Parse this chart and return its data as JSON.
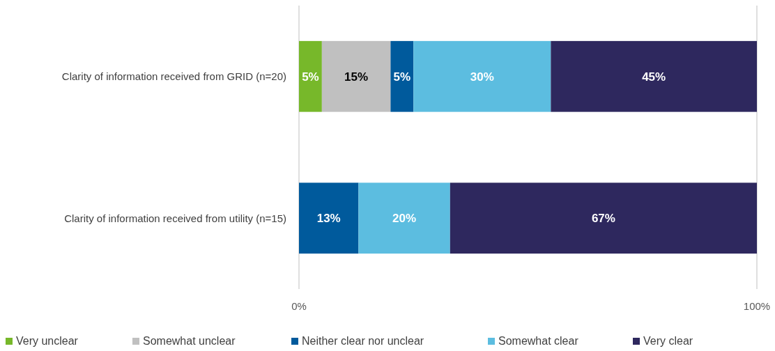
{
  "chart_data": {
    "type": "bar",
    "orientation": "horizontal",
    "stacked": true,
    "categories": [
      "Clarity of information received from GRID (n=20)",
      "Clarity of information received from utility (n=15)"
    ],
    "series": [
      {
        "name": "Very unclear",
        "color": "#77b82a",
        "values": [
          5,
          null
        ],
        "value_labels": [
          "5%",
          null
        ]
      },
      {
        "name": "Somewhat unclear",
        "color": "#c0c0c0",
        "values": [
          15,
          null
        ],
        "value_labels": [
          "15%",
          null
        ]
      },
      {
        "name": "Neither clear nor unclear",
        "color": "#005a9c",
        "values": [
          5,
          13
        ],
        "value_labels": [
          "5%",
          "13%"
        ]
      },
      {
        "name": "Somewhat clear",
        "color": "#5cbde0",
        "values": [
          30,
          20
        ],
        "value_labels": [
          "30%",
          "20%"
        ]
      },
      {
        "name": "Very clear",
        "color": "#2e285e",
        "values": [
          45,
          67
        ],
        "value_labels": [
          "45%",
          "67%"
        ]
      }
    ],
    "xlim": [
      0,
      100
    ],
    "xticks": [
      {
        "value": 0,
        "label": "0%"
      },
      {
        "value": 100,
        "label": "100%"
      }
    ],
    "legend": "bottom"
  }
}
